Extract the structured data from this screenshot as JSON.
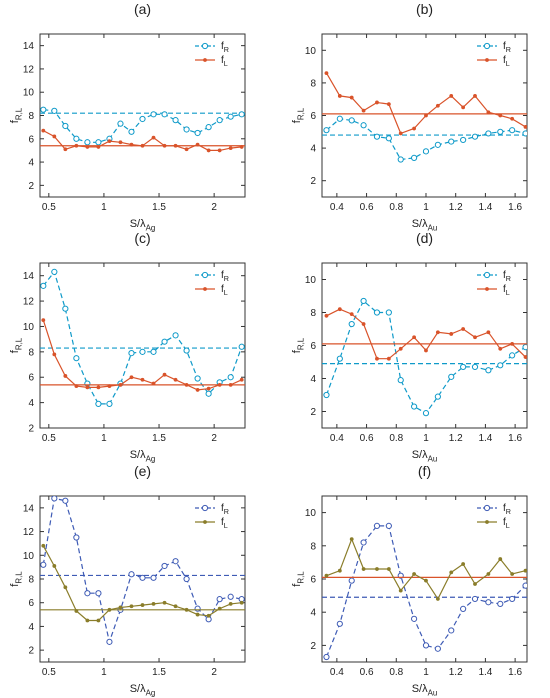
{
  "chart_data": [
    {
      "panel_label": "(a)",
      "type": "line",
      "xlabel_main": "S/λ",
      "xlabel_sub": "Ag",
      "ylabel_main": "f",
      "ylabel_sub": "R,L",
      "xlim": [
        0.42,
        2.28
      ],
      "ylim": [
        1,
        15
      ],
      "xticks": [
        0.5,
        1,
        1.5,
        2
      ],
      "xticklabels": [
        "0.5",
        "1",
        "1.5",
        "2"
      ],
      "yticks": [
        2,
        4,
        6,
        8,
        10,
        12,
        14
      ],
      "yticklabels": [
        "2",
        "4",
        "6",
        "8",
        "10",
        "12",
        "14"
      ],
      "legend": "top-right",
      "grid": false,
      "series": [
        {
          "name_main": "f",
          "name_sub": "R",
          "color": "#0f9ac9",
          "marker": "circle-open",
          "line": "dashed",
          "x": [
            0.45,
            0.55,
            0.65,
            0.75,
            0.85,
            0.95,
            1.05,
            1.15,
            1.25,
            1.35,
            1.45,
            1.55,
            1.65,
            1.75,
            1.85,
            1.95,
            2.05,
            2.15,
            2.25
          ],
          "y": [
            8.5,
            8.4,
            7.1,
            6.0,
            5.7,
            5.7,
            6.0,
            7.3,
            6.6,
            7.7,
            8.1,
            8.1,
            7.6,
            6.8,
            6.5,
            7.0,
            7.6,
            7.9,
            8.1
          ],
          "mean": 8.2
        },
        {
          "name_main": "f",
          "name_sub": "L",
          "color": "#d9532a",
          "marker": "dot",
          "line": "solid",
          "x": [
            0.45,
            0.55,
            0.65,
            0.75,
            0.85,
            0.95,
            1.05,
            1.15,
            1.25,
            1.35,
            1.45,
            1.55,
            1.65,
            1.75,
            1.85,
            1.95,
            2.05,
            2.15,
            2.25
          ],
          "y": [
            6.7,
            6.2,
            5.1,
            5.4,
            5.3,
            5.3,
            5.8,
            5.7,
            5.5,
            5.4,
            6.1,
            5.4,
            5.4,
            5.1,
            5.5,
            5.0,
            5.0,
            5.2,
            5.3
          ],
          "mean": 5.4
        }
      ]
    },
    {
      "panel_label": "(b)",
      "type": "line",
      "xlabel_main": "S/λ",
      "xlabel_sub": "Au",
      "ylabel_main": "f",
      "ylabel_sub": "R,L",
      "xlim": [
        0.3,
        1.68
      ],
      "ylim": [
        1,
        11
      ],
      "xticks": [
        0.4,
        0.6,
        0.8,
        1,
        1.2,
        1.4,
        1.6
      ],
      "xticklabels": [
        "0.4",
        "0.6",
        "0.8",
        "1",
        "1.2",
        "1.4",
        "1.6"
      ],
      "yticks": [
        2,
        4,
        6,
        8,
        10
      ],
      "yticklabels": [
        "2",
        "4",
        "6",
        "8",
        "10"
      ],
      "legend": "top-right",
      "grid": false,
      "series": [
        {
          "name_main": "f",
          "name_sub": "R",
          "color": "#0f9ac9",
          "marker": "circle-open",
          "line": "dashed",
          "x": [
            0.33,
            0.42,
            0.5,
            0.58,
            0.67,
            0.75,
            0.83,
            0.92,
            1.0,
            1.08,
            1.17,
            1.25,
            1.33,
            1.42,
            1.5,
            1.58,
            1.67
          ],
          "y": [
            5.1,
            5.8,
            5.7,
            5.4,
            4.7,
            4.6,
            3.3,
            3.4,
            3.8,
            4.2,
            4.4,
            4.5,
            4.7,
            4.9,
            5.0,
            5.1,
            4.9
          ],
          "mean": 4.8
        },
        {
          "name_main": "f",
          "name_sub": "L",
          "color": "#d9532a",
          "marker": "dot",
          "line": "solid",
          "x": [
            0.33,
            0.42,
            0.5,
            0.58,
            0.67,
            0.75,
            0.83,
            0.92,
            1.0,
            1.08,
            1.17,
            1.25,
            1.33,
            1.42,
            1.5,
            1.58,
            1.67
          ],
          "y": [
            8.6,
            7.2,
            7.1,
            6.3,
            6.8,
            6.7,
            4.9,
            5.2,
            6.0,
            6.6,
            7.2,
            6.5,
            7.2,
            6.2,
            6.0,
            5.8,
            5.3
          ],
          "mean": 6.1
        }
      ]
    },
    {
      "panel_label": "(c)",
      "type": "line",
      "xlabel_main": "S/λ",
      "xlabel_sub": "Ag",
      "ylabel_main": "f",
      "ylabel_sub": "R,L",
      "xlim": [
        0.42,
        2.28
      ],
      "ylim": [
        2,
        15
      ],
      "xticks": [
        0.5,
        1,
        1.5,
        2
      ],
      "xticklabels": [
        "0.5",
        "1",
        "1.5",
        "2"
      ],
      "yticks": [
        2,
        4,
        6,
        8,
        10,
        12,
        14
      ],
      "yticklabels": [
        "2",
        "4",
        "6",
        "8",
        "10",
        "12",
        "14"
      ],
      "legend": "top-right",
      "grid": false,
      "series": [
        {
          "name_main": "f",
          "name_sub": "R",
          "color": "#0f9ac9",
          "marker": "circle-open",
          "line": "dashed",
          "x": [
            0.45,
            0.55,
            0.65,
            0.75,
            0.85,
            0.95,
            1.05,
            1.15,
            1.25,
            1.35,
            1.45,
            1.55,
            1.65,
            1.75,
            1.85,
            1.95,
            2.05,
            2.15,
            2.25
          ],
          "y": [
            13.2,
            14.3,
            11.4,
            7.5,
            5.5,
            3.9,
            3.9,
            5.5,
            7.9,
            8.0,
            8.0,
            8.8,
            9.3,
            8.1,
            5.9,
            4.7,
            5.6,
            6.0,
            8.4
          ],
          "mean": 8.3
        },
        {
          "name_main": "f",
          "name_sub": "L",
          "color": "#d9532a",
          "marker": "dot",
          "line": "solid",
          "x": [
            0.45,
            0.55,
            0.65,
            0.75,
            0.85,
            0.95,
            1.05,
            1.15,
            1.25,
            1.35,
            1.45,
            1.55,
            1.65,
            1.75,
            1.85,
            1.95,
            2.05,
            2.15,
            2.25
          ],
          "y": [
            10.5,
            7.8,
            6.1,
            5.3,
            5.2,
            5.2,
            5.3,
            5.4,
            6.0,
            5.8,
            5.5,
            6.2,
            5.8,
            5.4,
            5.0,
            5.1,
            5.4,
            5.4,
            5.8
          ],
          "mean": 5.4,
          "tail_color": "#8a7d2a"
        }
      ]
    },
    {
      "panel_label": "(d)",
      "type": "line",
      "xlabel_main": "S/λ",
      "xlabel_sub": "Au",
      "ylabel_main": "f",
      "ylabel_sub": "R,L",
      "xlim": [
        0.3,
        1.68
      ],
      "ylim": [
        1,
        11
      ],
      "xticks": [
        0.4,
        0.6,
        0.8,
        1,
        1.2,
        1.4,
        1.6
      ],
      "xticklabels": [
        "0.4",
        "0.6",
        "0.8",
        "1",
        "1.2",
        "1.4",
        "1.6"
      ],
      "yticks": [
        2,
        4,
        6,
        8,
        10
      ],
      "yticklabels": [
        "2",
        "4",
        "6",
        "8",
        "10"
      ],
      "legend": "top-right",
      "grid": false,
      "series": [
        {
          "name_main": "f",
          "name_sub": "R",
          "color": "#0f9ac9",
          "marker": "circle-open",
          "line": "dashed",
          "x": [
            0.33,
            0.42,
            0.5,
            0.58,
            0.67,
            0.75,
            0.83,
            0.92,
            1.0,
            1.08,
            1.17,
            1.25,
            1.33,
            1.42,
            1.5,
            1.58,
            1.67
          ],
          "y": [
            3.0,
            5.2,
            7.3,
            8.7,
            8.0,
            8.0,
            3.9,
            2.3,
            1.9,
            2.9,
            4.1,
            4.7,
            4.7,
            4.5,
            4.8,
            5.4,
            5.9
          ],
          "mean": 4.9
        },
        {
          "name_main": "f",
          "name_sub": "L",
          "color": "#d9532a",
          "marker": "dot",
          "line": "solid",
          "x": [
            0.33,
            0.42,
            0.5,
            0.58,
            0.67,
            0.75,
            0.83,
            0.92,
            1.0,
            1.08,
            1.17,
            1.25,
            1.33,
            1.42,
            1.5,
            1.58,
            1.67
          ],
          "y": [
            7.8,
            8.2,
            7.9,
            7.3,
            5.2,
            5.2,
            5.8,
            6.5,
            5.7,
            6.8,
            6.7,
            7.0,
            6.5,
            6.8,
            5.8,
            6.1,
            5.3
          ],
          "mean": 6.1,
          "tail_color": "#8a7d2a"
        }
      ]
    },
    {
      "panel_label": "(e)",
      "type": "line",
      "xlabel_main": "S/λ",
      "xlabel_sub": "Ag",
      "ylabel_main": "f",
      "ylabel_sub": "R,L",
      "xlim": [
        0.42,
        2.28
      ],
      "ylim": [
        1,
        15
      ],
      "xticks": [
        0.5,
        1,
        1.5,
        2
      ],
      "xticklabels": [
        "0.5",
        "1",
        "1.5",
        "2"
      ],
      "yticks": [
        2,
        4,
        6,
        8,
        10,
        12,
        14
      ],
      "yticklabels": [
        "2",
        "4",
        "6",
        "8",
        "10",
        "12",
        "14"
      ],
      "legend": "top-right",
      "grid": false,
      "series": [
        {
          "name_main": "f",
          "name_sub": "R",
          "color": "#3e5bb5",
          "marker": "circle-open",
          "line": "dashed",
          "x": [
            0.45,
            0.55,
            0.65,
            0.75,
            0.85,
            0.95,
            1.05,
            1.15,
            1.25,
            1.35,
            1.45,
            1.55,
            1.65,
            1.75,
            1.85,
            1.95,
            2.05,
            2.15,
            2.25
          ],
          "y": [
            9.2,
            14.8,
            14.6,
            11.5,
            6.8,
            6.8,
            2.7,
            5.4,
            8.4,
            8.1,
            8.1,
            9.1,
            9.5,
            8.0,
            5.5,
            4.6,
            6.3,
            6.5,
            6.3
          ],
          "mean": 8.3
        },
        {
          "name_main": "f",
          "name_sub": "L",
          "color": "#8a7d2a",
          "marker": "dot",
          "line": "solid",
          "x": [
            0.45,
            0.55,
            0.65,
            0.75,
            0.85,
            0.95,
            1.05,
            1.15,
            1.25,
            1.35,
            1.45,
            1.55,
            1.65,
            1.75,
            1.85,
            1.95,
            2.05,
            2.15,
            2.25
          ],
          "y": [
            10.8,
            9.1,
            7.3,
            5.3,
            4.5,
            4.5,
            5.4,
            5.6,
            5.7,
            5.8,
            5.9,
            6.0,
            5.7,
            5.4,
            5.0,
            4.9,
            5.5,
            5.9,
            6.0
          ],
          "mean": 5.4
        }
      ]
    },
    {
      "panel_label": "(f)",
      "type": "line",
      "xlabel_main": "S/λ",
      "xlabel_sub": "Au",
      "ylabel_main": "f",
      "ylabel_sub": "R,L",
      "xlim": [
        0.3,
        1.68
      ],
      "ylim": [
        1,
        11
      ],
      "xticks": [
        0.4,
        0.6,
        0.8,
        1,
        1.2,
        1.4,
        1.6
      ],
      "xticklabels": [
        "0.4",
        "0.6",
        "0.8",
        "1",
        "1.2",
        "1.4",
        "1.6"
      ],
      "yticks": [
        2,
        4,
        6,
        8,
        10
      ],
      "yticklabels": [
        "2",
        "4",
        "6",
        "8",
        "10"
      ],
      "legend": "top-right",
      "grid": false,
      "series": [
        {
          "name_main": "f",
          "name_sub": "R",
          "color": "#3e5bb5",
          "marker": "circle-open",
          "line": "dashed",
          "x": [
            0.33,
            0.42,
            0.5,
            0.58,
            0.67,
            0.75,
            0.83,
            0.92,
            1.0,
            1.08,
            1.17,
            1.25,
            1.33,
            1.42,
            1.5,
            1.58,
            1.67
          ],
          "y": [
            1.3,
            3.3,
            5.9,
            8.2,
            9.2,
            9.2,
            6.2,
            3.6,
            2.0,
            1.8,
            2.9,
            4.2,
            4.8,
            4.6,
            4.5,
            4.8,
            5.6
          ],
          "mean": 4.9
        },
        {
          "name_main": "f",
          "name_sub": "L",
          "color": "#8a7d2a",
          "marker": "dot",
          "line": "solid",
          "x": [
            0.33,
            0.42,
            0.5,
            0.58,
            0.67,
            0.75,
            0.83,
            0.92,
            1.0,
            1.08,
            1.17,
            1.25,
            1.33,
            1.42,
            1.5,
            1.58,
            1.67
          ],
          "y": [
            6.2,
            6.5,
            8.4,
            6.6,
            6.6,
            6.6,
            5.3,
            6.3,
            5.9,
            4.8,
            6.4,
            6.9,
            5.7,
            6.3,
            7.2,
            6.3,
            6.5
          ],
          "mean": 6.1,
          "mean_color": "#d9532a"
        }
      ]
    }
  ]
}
